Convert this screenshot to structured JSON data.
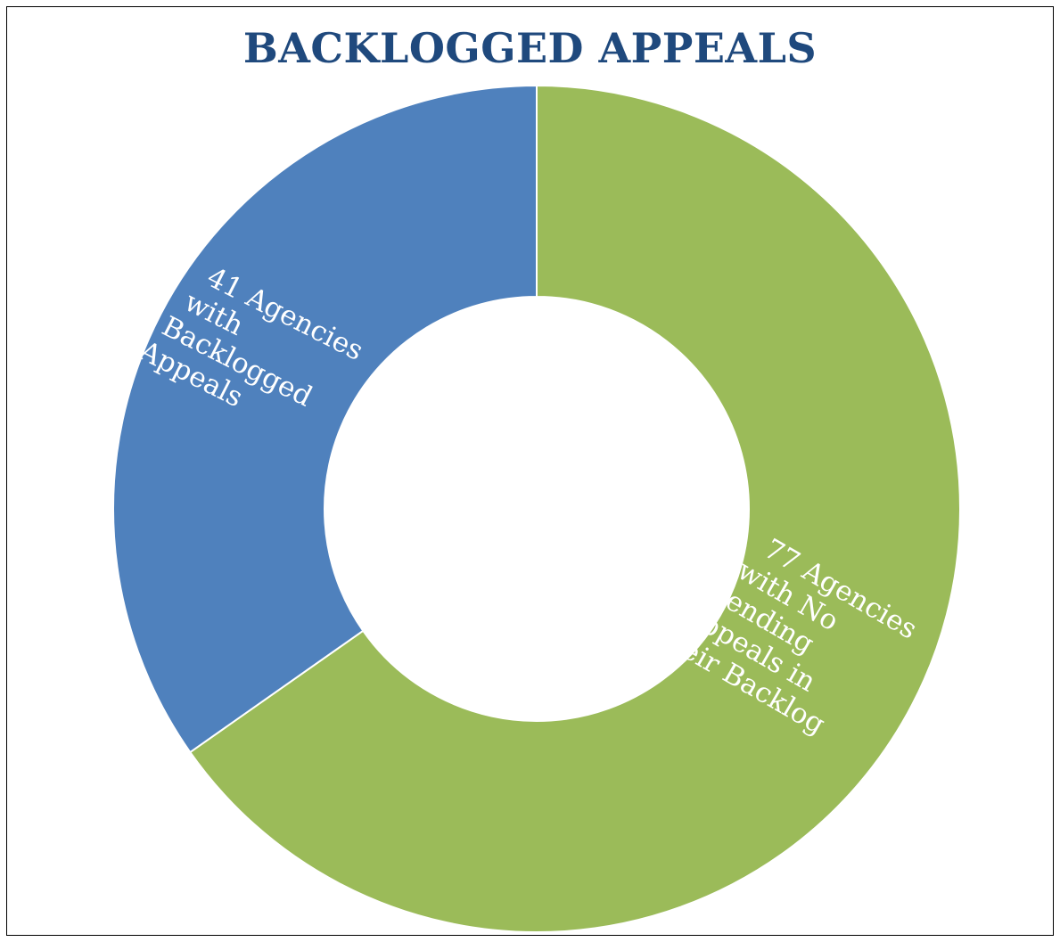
{
  "chart_data": {
    "type": "pie",
    "variant": "donut",
    "title": "BACKLOGGED APPEALS",
    "slices": [
      {
        "label_lines": [
          "77 Agencies",
          "with No",
          "Pending",
          "Appeals in",
          "their Backlog"
        ],
        "value": 77,
        "color": "#9BBB59"
      },
      {
        "label_lines": [
          "41 Agencies",
          "with",
          "Backlogged",
          "Appeals"
        ],
        "value": 41,
        "color": "#4F81BD"
      }
    ],
    "start": "top (12 o'clock)",
    "direction": "clockwise",
    "legend": "none",
    "colors": {
      "title": "#1F497D",
      "separator": "#ffffff",
      "label_text": "#ffffff"
    }
  }
}
